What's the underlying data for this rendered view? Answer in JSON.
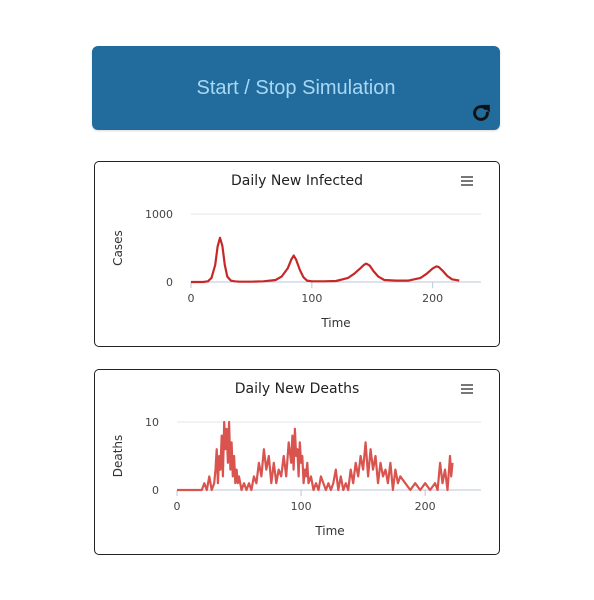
{
  "button": {
    "label": "Start / Stop Simulation",
    "icon": "refresh-icon"
  },
  "chart_data": [
    {
      "type": "line",
      "title": "Daily New Infected",
      "xlabel": "Time",
      "ylabel": "Cases",
      "xlim": [
        0,
        240
      ],
      "ylim": [
        0,
        1000
      ],
      "xticks": [
        0,
        100,
        200
      ],
      "yticks": [
        0,
        1000
      ],
      "color": "#c62828",
      "menu_icon": "hamburger-menu-icon",
      "series": [
        {
          "x": [
            0,
            10,
            14,
            17,
            20,
            22,
            24,
            26,
            28,
            30,
            33,
            36,
            40,
            50,
            60,
            70,
            75,
            80,
            83,
            85,
            87,
            90,
            93,
            96,
            100,
            110,
            120,
            130,
            135,
            140,
            143,
            145,
            148,
            151,
            155,
            160,
            170,
            180,
            190,
            195,
            200,
            203,
            205,
            208,
            212,
            216,
            222
          ],
          "values": [
            0,
            0,
            10,
            60,
            250,
            520,
            650,
            530,
            250,
            80,
            20,
            10,
            5,
            5,
            10,
            30,
            80,
            200,
            330,
            390,
            330,
            180,
            70,
            20,
            10,
            10,
            15,
            60,
            120,
            200,
            250,
            270,
            240,
            160,
            80,
            30,
            20,
            20,
            60,
            120,
            200,
            230,
            220,
            170,
            90,
            40,
            20
          ]
        }
      ]
    },
    {
      "type": "line",
      "title": "Daily New Deaths",
      "xlabel": "Time",
      "ylabel": "Deaths",
      "xlim": [
        0,
        245
      ],
      "ylim": [
        0,
        10
      ],
      "xticks": [
        0,
        100,
        200
      ],
      "yticks": [
        0,
        10
      ],
      "color": "#d9534f",
      "menu_icon": "hamburger-menu-icon",
      "series": [
        {
          "x": [
            0,
            20,
            22,
            24,
            26,
            28,
            30,
            31,
            32,
            33,
            34,
            35,
            36,
            37,
            38,
            39,
            40,
            41,
            42,
            43,
            44,
            45,
            46,
            47,
            48,
            49,
            50,
            52,
            54,
            56,
            58,
            60,
            62,
            64,
            66,
            68,
            70,
            72,
            74,
            76,
            78,
            80,
            82,
            84,
            86,
            88,
            90,
            92,
            93,
            94,
            95,
            96,
            97,
            98,
            99,
            100,
            101,
            102,
            103,
            104,
            105,
            106,
            108,
            110,
            112,
            114,
            116,
            118,
            120,
            122,
            124,
            126,
            128,
            130,
            132,
            134,
            136,
            138,
            140,
            142,
            144,
            146,
            148,
            150,
            152,
            154,
            156,
            158,
            160,
            162,
            164,
            166,
            168,
            170,
            172,
            174,
            176,
            178,
            180,
            184,
            188,
            192,
            196,
            200,
            204,
            208,
            210,
            212,
            214,
            216,
            218,
            220,
            221,
            222
          ],
          "values": [
            0,
            0,
            1,
            0,
            2,
            0,
            1,
            3,
            6,
            1,
            5,
            3,
            8,
            2,
            10,
            6,
            9,
            4,
            10,
            3,
            7,
            2,
            5,
            1,
            3,
            1,
            2,
            0,
            1,
            0,
            1,
            0,
            2,
            1,
            4,
            2,
            6,
            3,
            5,
            1,
            4,
            1,
            3,
            2,
            5,
            2,
            7,
            4,
            8,
            3,
            9,
            5,
            6,
            2,
            7,
            4,
            5,
            1,
            3,
            2,
            4,
            1,
            2,
            0,
            1,
            0,
            2,
            1,
            0,
            1,
            0,
            1,
            3,
            0,
            2,
            0,
            1,
            0,
            3,
            1,
            4,
            2,
            5,
            3,
            7,
            2,
            6,
            3,
            5,
            1,
            4,
            2,
            3,
            1,
            4,
            0,
            3,
            1,
            2,
            1,
            0,
            1,
            0,
            1,
            0,
            1,
            0,
            4,
            1,
            3,
            0,
            5,
            2,
            4
          ]
        }
      ]
    }
  ]
}
